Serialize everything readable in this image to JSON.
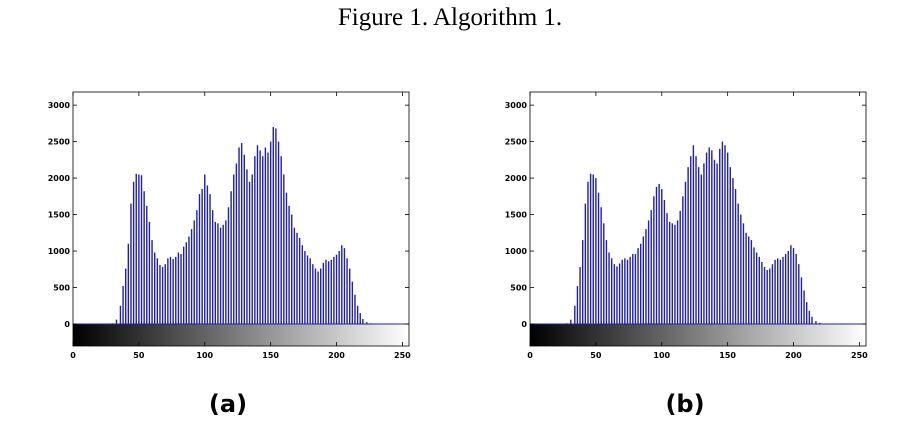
{
  "figure": {
    "title": "Figure 1. Algorithm 1.",
    "panel_labels": [
      "(a)",
      "(b)"
    ]
  },
  "colors": {
    "bar": "#1f1fa8",
    "axis": "#000000"
  },
  "chart_data": [
    {
      "type": "bar",
      "title": "",
      "xlabel": "",
      "ylabel": "",
      "xlim": [
        0,
        255
      ],
      "ylim": [
        0,
        3000
      ],
      "xticks": [
        0,
        50,
        100,
        150,
        200,
        250
      ],
      "yticks": [
        0,
        500,
        1000,
        1500,
        2000,
        2500,
        3000
      ],
      "colorbar": "grayscale 0-255",
      "grid": false,
      "bins": [
        {
          "x": 30,
          "y": 10
        },
        {
          "x": 33,
          "y": 60
        },
        {
          "x": 36,
          "y": 250
        },
        {
          "x": 38,
          "y": 520
        },
        {
          "x": 40,
          "y": 760
        },
        {
          "x": 42,
          "y": 1100
        },
        {
          "x": 44,
          "y": 1650
        },
        {
          "x": 46,
          "y": 1950
        },
        {
          "x": 48,
          "y": 2060
        },
        {
          "x": 50,
          "y": 2050
        },
        {
          "x": 52,
          "y": 2040
        },
        {
          "x": 54,
          "y": 1820
        },
        {
          "x": 56,
          "y": 1620
        },
        {
          "x": 58,
          "y": 1400
        },
        {
          "x": 60,
          "y": 1150
        },
        {
          "x": 62,
          "y": 980
        },
        {
          "x": 64,
          "y": 900
        },
        {
          "x": 66,
          "y": 810
        },
        {
          "x": 68,
          "y": 780
        },
        {
          "x": 70,
          "y": 820
        },
        {
          "x": 72,
          "y": 900
        },
        {
          "x": 74,
          "y": 920
        },
        {
          "x": 76,
          "y": 890
        },
        {
          "x": 78,
          "y": 920
        },
        {
          "x": 80,
          "y": 980
        },
        {
          "x": 82,
          "y": 960
        },
        {
          "x": 84,
          "y": 1060
        },
        {
          "x": 86,
          "y": 1120
        },
        {
          "x": 88,
          "y": 1200
        },
        {
          "x": 90,
          "y": 1300
        },
        {
          "x": 92,
          "y": 1420
        },
        {
          "x": 94,
          "y": 1560
        },
        {
          "x": 96,
          "y": 1780
        },
        {
          "x": 98,
          "y": 1850
        },
        {
          "x": 100,
          "y": 2050
        },
        {
          "x": 102,
          "y": 1900
        },
        {
          "x": 104,
          "y": 1780
        },
        {
          "x": 106,
          "y": 1560
        },
        {
          "x": 108,
          "y": 1400
        },
        {
          "x": 110,
          "y": 1380
        },
        {
          "x": 112,
          "y": 1320
        },
        {
          "x": 114,
          "y": 1360
        },
        {
          "x": 116,
          "y": 1420
        },
        {
          "x": 118,
          "y": 1600
        },
        {
          "x": 120,
          "y": 1820
        },
        {
          "x": 122,
          "y": 2050
        },
        {
          "x": 124,
          "y": 2200
        },
        {
          "x": 126,
          "y": 2420
        },
        {
          "x": 128,
          "y": 2480
        },
        {
          "x": 130,
          "y": 2320
        },
        {
          "x": 132,
          "y": 2120
        },
        {
          "x": 134,
          "y": 1950
        },
        {
          "x": 136,
          "y": 2050
        },
        {
          "x": 138,
          "y": 2300
        },
        {
          "x": 140,
          "y": 2450
        },
        {
          "x": 142,
          "y": 2380
        },
        {
          "x": 144,
          "y": 2300
        },
        {
          "x": 146,
          "y": 2420
        },
        {
          "x": 148,
          "y": 2350
        },
        {
          "x": 150,
          "y": 2500
        },
        {
          "x": 152,
          "y": 2700
        },
        {
          "x": 154,
          "y": 2680
        },
        {
          "x": 156,
          "y": 2500
        },
        {
          "x": 158,
          "y": 2300
        },
        {
          "x": 160,
          "y": 2050
        },
        {
          "x": 162,
          "y": 1800
        },
        {
          "x": 164,
          "y": 1620
        },
        {
          "x": 166,
          "y": 1500
        },
        {
          "x": 168,
          "y": 1320
        },
        {
          "x": 170,
          "y": 1250
        },
        {
          "x": 172,
          "y": 1180
        },
        {
          "x": 174,
          "y": 1080
        },
        {
          "x": 176,
          "y": 1000
        },
        {
          "x": 178,
          "y": 940
        },
        {
          "x": 180,
          "y": 900
        },
        {
          "x": 182,
          "y": 820
        },
        {
          "x": 184,
          "y": 760
        },
        {
          "x": 186,
          "y": 720
        },
        {
          "x": 188,
          "y": 760
        },
        {
          "x": 190,
          "y": 840
        },
        {
          "x": 192,
          "y": 880
        },
        {
          "x": 194,
          "y": 860
        },
        {
          "x": 196,
          "y": 880
        },
        {
          "x": 198,
          "y": 920
        },
        {
          "x": 200,
          "y": 950
        },
        {
          "x": 202,
          "y": 1000
        },
        {
          "x": 204,
          "y": 1080
        },
        {
          "x": 206,
          "y": 1040
        },
        {
          "x": 208,
          "y": 900
        },
        {
          "x": 210,
          "y": 760
        },
        {
          "x": 212,
          "y": 580
        },
        {
          "x": 214,
          "y": 400
        },
        {
          "x": 216,
          "y": 250
        },
        {
          "x": 218,
          "y": 150
        },
        {
          "x": 220,
          "y": 70
        },
        {
          "x": 223,
          "y": 25
        },
        {
          "x": 226,
          "y": 10
        }
      ]
    },
    {
      "type": "bar",
      "title": "",
      "xlabel": "",
      "ylabel": "",
      "xlim": [
        0,
        255
      ],
      "ylim": [
        0,
        3000
      ],
      "xticks": [
        0,
        50,
        100,
        150,
        200,
        250
      ],
      "yticks": [
        0,
        500,
        1000,
        1500,
        2000,
        2500,
        3000
      ],
      "colorbar": "grayscale 0-255",
      "grid": false,
      "bins": [
        {
          "x": 28,
          "y": 10
        },
        {
          "x": 31,
          "y": 60
        },
        {
          "x": 34,
          "y": 250
        },
        {
          "x": 36,
          "y": 520
        },
        {
          "x": 38,
          "y": 780
        },
        {
          "x": 40,
          "y": 1150
        },
        {
          "x": 42,
          "y": 1650
        },
        {
          "x": 44,
          "y": 1950
        },
        {
          "x": 46,
          "y": 2060
        },
        {
          "x": 48,
          "y": 2050
        },
        {
          "x": 50,
          "y": 2000
        },
        {
          "x": 52,
          "y": 1800
        },
        {
          "x": 54,
          "y": 1600
        },
        {
          "x": 56,
          "y": 1380
        },
        {
          "x": 58,
          "y": 1150
        },
        {
          "x": 60,
          "y": 980
        },
        {
          "x": 62,
          "y": 900
        },
        {
          "x": 64,
          "y": 820
        },
        {
          "x": 66,
          "y": 790
        },
        {
          "x": 68,
          "y": 830
        },
        {
          "x": 70,
          "y": 880
        },
        {
          "x": 72,
          "y": 900
        },
        {
          "x": 74,
          "y": 880
        },
        {
          "x": 76,
          "y": 920
        },
        {
          "x": 78,
          "y": 960
        },
        {
          "x": 80,
          "y": 960
        },
        {
          "x": 82,
          "y": 1040
        },
        {
          "x": 84,
          "y": 1100
        },
        {
          "x": 86,
          "y": 1200
        },
        {
          "x": 88,
          "y": 1300
        },
        {
          "x": 90,
          "y": 1420
        },
        {
          "x": 92,
          "y": 1560
        },
        {
          "x": 94,
          "y": 1750
        },
        {
          "x": 96,
          "y": 1880
        },
        {
          "x": 98,
          "y": 1920
        },
        {
          "x": 100,
          "y": 1850
        },
        {
          "x": 102,
          "y": 1700
        },
        {
          "x": 104,
          "y": 1520
        },
        {
          "x": 106,
          "y": 1400
        },
        {
          "x": 108,
          "y": 1380
        },
        {
          "x": 110,
          "y": 1360
        },
        {
          "x": 112,
          "y": 1420
        },
        {
          "x": 114,
          "y": 1550
        },
        {
          "x": 116,
          "y": 1750
        },
        {
          "x": 118,
          "y": 1950
        },
        {
          "x": 120,
          "y": 2150
        },
        {
          "x": 122,
          "y": 2300
        },
        {
          "x": 124,
          "y": 2450
        },
        {
          "x": 126,
          "y": 2300
        },
        {
          "x": 128,
          "y": 2150
        },
        {
          "x": 130,
          "y": 2050
        },
        {
          "x": 132,
          "y": 2200
        },
        {
          "x": 134,
          "y": 2350
        },
        {
          "x": 136,
          "y": 2420
        },
        {
          "x": 138,
          "y": 2380
        },
        {
          "x": 140,
          "y": 2250
        },
        {
          "x": 142,
          "y": 2200
        },
        {
          "x": 144,
          "y": 2400
        },
        {
          "x": 146,
          "y": 2500
        },
        {
          "x": 148,
          "y": 2450
        },
        {
          "x": 150,
          "y": 2350
        },
        {
          "x": 152,
          "y": 2150
        },
        {
          "x": 154,
          "y": 2000
        },
        {
          "x": 156,
          "y": 1850
        },
        {
          "x": 158,
          "y": 1650
        },
        {
          "x": 160,
          "y": 1500
        },
        {
          "x": 162,
          "y": 1380
        },
        {
          "x": 164,
          "y": 1250
        },
        {
          "x": 166,
          "y": 1200
        },
        {
          "x": 168,
          "y": 1150
        },
        {
          "x": 170,
          "y": 1050
        },
        {
          "x": 172,
          "y": 980
        },
        {
          "x": 174,
          "y": 920
        },
        {
          "x": 176,
          "y": 850
        },
        {
          "x": 178,
          "y": 780
        },
        {
          "x": 180,
          "y": 740
        },
        {
          "x": 182,
          "y": 760
        },
        {
          "x": 184,
          "y": 820
        },
        {
          "x": 186,
          "y": 880
        },
        {
          "x": 188,
          "y": 900
        },
        {
          "x": 190,
          "y": 880
        },
        {
          "x": 192,
          "y": 920
        },
        {
          "x": 194,
          "y": 960
        },
        {
          "x": 196,
          "y": 1000
        },
        {
          "x": 198,
          "y": 1080
        },
        {
          "x": 200,
          "y": 1040
        },
        {
          "x": 202,
          "y": 960
        },
        {
          "x": 204,
          "y": 820
        },
        {
          "x": 206,
          "y": 640
        },
        {
          "x": 208,
          "y": 460
        },
        {
          "x": 210,
          "y": 300
        },
        {
          "x": 212,
          "y": 180
        },
        {
          "x": 214,
          "y": 100
        },
        {
          "x": 217,
          "y": 40
        },
        {
          "x": 220,
          "y": 15
        },
        {
          "x": 224,
          "y": 5
        }
      ]
    }
  ]
}
